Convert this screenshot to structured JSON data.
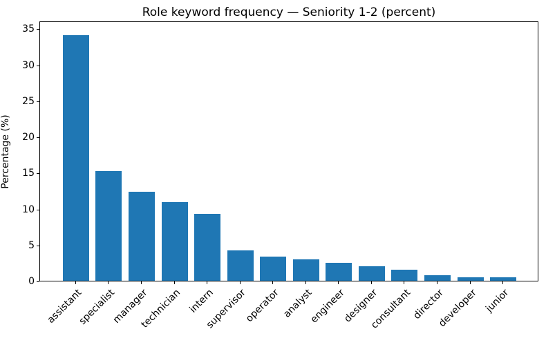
{
  "chart_data": {
    "type": "bar",
    "title": "Role keyword frequency — Seniority 1-2 (percent)",
    "xlabel": "",
    "ylabel": "Percentage (%)",
    "categories": [
      "assistant",
      "specialist",
      "manager",
      "technician",
      "intern",
      "supervisor",
      "operator",
      "analyst",
      "engineer",
      "designer",
      "consultant",
      "director",
      "developer",
      "junior"
    ],
    "values": [
      34.1,
      15.2,
      12.4,
      10.9,
      9.3,
      4.2,
      3.4,
      3.0,
      2.5,
      2.0,
      1.5,
      0.8,
      0.5,
      0.5
    ],
    "yticks": [
      0,
      5,
      10,
      15,
      20,
      25,
      30,
      35
    ],
    "ylim": [
      0,
      36.1
    ],
    "xlim": [
      -1.09,
      14.09
    ],
    "bar_width_units": 0.8,
    "bar_color": "#1f77b4",
    "spine_color": "#000000",
    "text_color": "#000000",
    "grid": false,
    "legend": null,
    "x_tick_rotation_deg": 45
  }
}
